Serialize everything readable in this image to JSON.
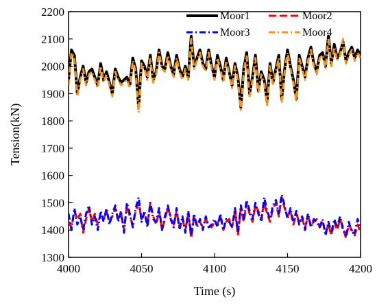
{
  "chart_data": {
    "type": "line",
    "title": "",
    "xlabel": "Time (s)",
    "ylabel": "Tension(kN)",
    "xlim": [
      4000,
      4200
    ],
    "ylim": [
      1300,
      2200
    ],
    "xticks": [
      4000,
      4050,
      4100,
      4150,
      4200
    ],
    "yticks": [
      1300,
      1400,
      1500,
      1600,
      1700,
      1800,
      1900,
      2000,
      2100,
      2200
    ],
    "grid": false,
    "legend_placement": "top-right",
    "series": [
      {
        "name": "Moor1",
        "color": "#000000",
        "style": "solid",
        "x": [
          4000,
          4002,
          4004,
          4006,
          4008,
          4010,
          4012,
          4014,
          4016,
          4018,
          4020,
          4022,
          4024,
          4026,
          4028,
          4030,
          4032,
          4034,
          4036,
          4038,
          4040,
          4042,
          4044,
          4046,
          4048,
          4050,
          4052,
          4054,
          4056,
          4058,
          4060,
          4062,
          4064,
          4066,
          4068,
          4070,
          4072,
          4074,
          4076,
          4078,
          4080,
          4082,
          4084,
          4086,
          4088,
          4090,
          4092,
          4094,
          4096,
          4098,
          4100,
          4102,
          4104,
          4106,
          4108,
          4110,
          4112,
          4114,
          4116,
          4118,
          4120,
          4122,
          4124,
          4126,
          4128,
          4130,
          4132,
          4134,
          4136,
          4138,
          4140,
          4142,
          4144,
          4146,
          4148,
          4150,
          4152,
          4154,
          4156,
          4158,
          4160,
          4162,
          4164,
          4166,
          4168,
          4170,
          4172,
          4174,
          4176,
          4178,
          4180,
          4182,
          4184,
          4186,
          4188,
          4190,
          4192,
          4194,
          4196,
          4198,
          4200
        ],
        "y": [
          1950,
          2060,
          2040,
          1900,
          1960,
          2000,
          1940,
          1980,
          1990,
          1960,
          1930,
          2010,
          1950,
          1980,
          1940,
          1900,
          1990,
          1960,
          1940,
          1950,
          1960,
          1930,
          2030,
          1990,
          1850,
          2020,
          2000,
          1960,
          2040,
          1950,
          1980,
          2060,
          2000,
          1990,
          2050,
          2000,
          1970,
          2040,
          1990,
          1960,
          2000,
          1960,
          2110,
          2000,
          2030,
          2060,
          2010,
          1990,
          2060,
          2000,
          1960,
          2040,
          2000,
          1950,
          2030,
          1980,
          1930,
          2010,
          1960,
          1850,
          1990,
          2050,
          1900,
          1960,
          2040,
          1910,
          1980,
          1950,
          1870,
          2010,
          1940,
          1990,
          2040,
          1880,
          1990,
          2060,
          2000,
          1950,
          1880,
          2040,
          2000,
          1960,
          2030,
          2070,
          2010,
          1980,
          2040,
          2050,
          2000,
          2110,
          2010,
          2080,
          2030,
          2050,
          2090,
          2020,
          2050,
          2070,
          2030,
          2060,
          2040
        ]
      },
      {
        "name": "Moor2",
        "color": "#ff0000",
        "style": "dashed",
        "x": [
          4000,
          4002,
          4004,
          4006,
          4008,
          4010,
          4012,
          4014,
          4016,
          4018,
          4020,
          4022,
          4024,
          4026,
          4028,
          4030,
          4032,
          4034,
          4036,
          4038,
          4040,
          4042,
          4044,
          4046,
          4048,
          4050,
          4052,
          4054,
          4056,
          4058,
          4060,
          4062,
          4064,
          4066,
          4068,
          4070,
          4072,
          4074,
          4076,
          4078,
          4080,
          4082,
          4084,
          4086,
          4088,
          4090,
          4092,
          4094,
          4096,
          4098,
          4100,
          4102,
          4104,
          4106,
          4108,
          4110,
          4112,
          4114,
          4116,
          4118,
          4120,
          4122,
          4124,
          4126,
          4128,
          4130,
          4132,
          4134,
          4136,
          4138,
          4140,
          4142,
          4144,
          4146,
          4148,
          4150,
          4152,
          4154,
          4156,
          4158,
          4160,
          4162,
          4164,
          4166,
          4168,
          4170,
          4172,
          4174,
          4176,
          4178,
          4180,
          4182,
          4184,
          4186,
          4188,
          4190,
          4192,
          4194,
          4196,
          4198,
          4200
        ],
        "y": [
          1430,
          1410,
          1470,
          1440,
          1460,
          1390,
          1440,
          1480,
          1430,
          1460,
          1420,
          1460,
          1440,
          1470,
          1430,
          1450,
          1480,
          1440,
          1460,
          1400,
          1490,
          1450,
          1420,
          1470,
          1500,
          1440,
          1460,
          1420,
          1500,
          1450,
          1420,
          1470,
          1400,
          1440,
          1480,
          1450,
          1420,
          1470,
          1410,
          1440,
          1400,
          1460,
          1370,
          1450,
          1420,
          1430,
          1410,
          1440,
          1420,
          1410,
          1430,
          1420,
          1450,
          1400,
          1430,
          1440,
          1410,
          1470,
          1380,
          1480,
          1430,
          1500,
          1460,
          1430,
          1490,
          1470,
          1440,
          1500,
          1460,
          1430,
          1480,
          1500,
          1450,
          1520,
          1480,
          1450,
          1470,
          1420,
          1460,
          1430,
          1440,
          1410,
          1450,
          1420,
          1430,
          1440,
          1410,
          1430,
          1390,
          1420,
          1380,
          1430,
          1400,
          1440,
          1410,
          1370,
          1420,
          1400,
          1380,
          1420,
          1390
        ]
      },
      {
        "name": "Moor3",
        "color": "#0000ff",
        "style": "dash-dot",
        "x": [
          4000,
          4002,
          4004,
          4006,
          4008,
          4010,
          4012,
          4014,
          4016,
          4018,
          4020,
          4022,
          4024,
          4026,
          4028,
          4030,
          4032,
          4034,
          4036,
          4038,
          4040,
          4042,
          4044,
          4046,
          4048,
          4050,
          4052,
          4054,
          4056,
          4058,
          4060,
          4062,
          4064,
          4066,
          4068,
          4070,
          4072,
          4074,
          4076,
          4078,
          4080,
          4082,
          4084,
          4086,
          4088,
          4090,
          4092,
          4094,
          4096,
          4098,
          4100,
          4102,
          4104,
          4106,
          4108,
          4110,
          4112,
          4114,
          4116,
          4118,
          4120,
          4122,
          4124,
          4126,
          4128,
          4130,
          4132,
          4134,
          4136,
          4138,
          4140,
          4142,
          4144,
          4146,
          4148,
          4150,
          4152,
          4154,
          4156,
          4158,
          4160,
          4162,
          4164,
          4166,
          4168,
          4170,
          4172,
          4174,
          4176,
          4178,
          4180,
          4182,
          4184,
          4186,
          4188,
          4190,
          4192,
          4194,
          4196,
          4198,
          4200
        ],
        "y": [
          1460,
          1400,
          1480,
          1420,
          1450,
          1400,
          1460,
          1490,
          1420,
          1450,
          1400,
          1470,
          1430,
          1480,
          1420,
          1460,
          1490,
          1430,
          1470,
          1390,
          1500,
          1460,
          1410,
          1480,
          1520,
          1430,
          1470,
          1410,
          1500,
          1440,
          1430,
          1480,
          1400,
          1450,
          1490,
          1440,
          1410,
          1480,
          1400,
          1450,
          1390,
          1470,
          1380,
          1460,
          1410,
          1440,
          1400,
          1450,
          1410,
          1420,
          1440,
          1410,
          1460,
          1400,
          1440,
          1430,
          1410,
          1480,
          1390,
          1490,
          1440,
          1510,
          1470,
          1440,
          1500,
          1460,
          1430,
          1520,
          1470,
          1440,
          1490,
          1510,
          1460,
          1530,
          1490,
          1440,
          1480,
          1430,
          1470,
          1420,
          1450,
          1400,
          1460,
          1410,
          1440,
          1430,
          1410,
          1440,
          1380,
          1430,
          1390,
          1440,
          1410,
          1450,
          1400,
          1380,
          1430,
          1390,
          1390,
          1440,
          1410
        ]
      },
      {
        "name": "Moor4",
        "color": "#f7931e",
        "style": "dash-dot",
        "x": [
          4000,
          4002,
          4004,
          4006,
          4008,
          4010,
          4012,
          4014,
          4016,
          4018,
          4020,
          4022,
          4024,
          4026,
          4028,
          4030,
          4032,
          4034,
          4036,
          4038,
          4040,
          4042,
          4044,
          4046,
          4048,
          4050,
          4052,
          4054,
          4056,
          4058,
          4060,
          4062,
          4064,
          4066,
          4068,
          4070,
          4072,
          4074,
          4076,
          4078,
          4080,
          4082,
          4084,
          4086,
          4088,
          4090,
          4092,
          4094,
          4096,
          4098,
          4100,
          4102,
          4104,
          4106,
          4108,
          4110,
          4112,
          4114,
          4116,
          4118,
          4120,
          4122,
          4124,
          4126,
          4128,
          4130,
          4132,
          4134,
          4136,
          4138,
          4140,
          4142,
          4144,
          4146,
          4148,
          4150,
          4152,
          4154,
          4156,
          4158,
          4160,
          4162,
          4164,
          4166,
          4168,
          4170,
          4172,
          4174,
          4176,
          4178,
          4180,
          4182,
          4184,
          4186,
          4188,
          4190,
          4192,
          4194,
          4196,
          4198,
          4200
        ],
        "y": [
          1930,
          2050,
          2030,
          1890,
          1950,
          1990,
          1930,
          1970,
          1980,
          1950,
          1920,
          2000,
          1940,
          1970,
          1930,
          1890,
          1980,
          1950,
          1930,
          1940,
          1950,
          1920,
          2020,
          1980,
          1830,
          2010,
          1990,
          1950,
          2030,
          1940,
          1970,
          2050,
          1990,
          1980,
          2040,
          1990,
          1960,
          2030,
          1980,
          1950,
          1990,
          1950,
          2100,
          1990,
          2020,
          2050,
          2000,
          1980,
          2050,
          1990,
          1950,
          2030,
          1990,
          1940,
          2020,
          1970,
          1920,
          2000,
          1950,
          1840,
          1980,
          2040,
          1890,
          1950,
          2030,
          1900,
          1970,
          1940,
          1850,
          2000,
          1930,
          1980,
          2030,
          1870,
          1980,
          2050,
          1990,
          1940,
          1870,
          2030,
          1990,
          1950,
          2020,
          2060,
          2000,
          1970,
          2030,
          2040,
          1990,
          2100,
          2000,
          2070,
          2020,
          2040,
          2100,
          2010,
          2040,
          2060,
          2020,
          2050,
          2030
        ]
      }
    ]
  }
}
